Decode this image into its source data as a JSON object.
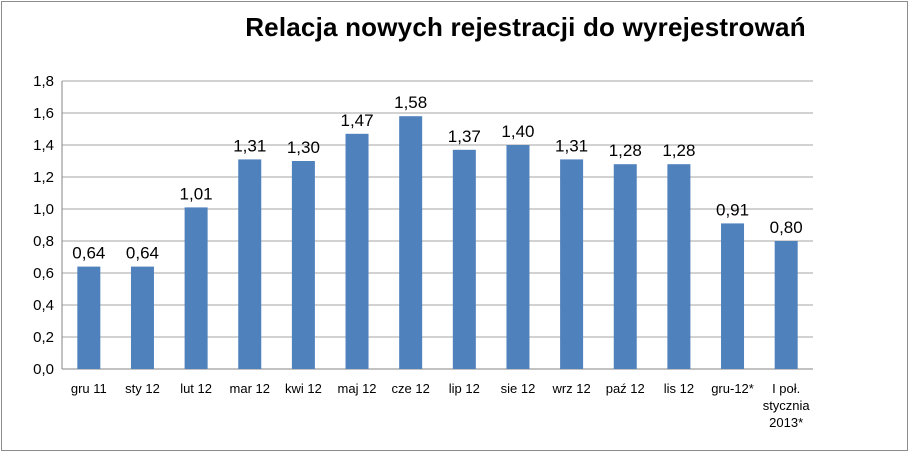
{
  "chart_data": {
    "type": "bar",
    "title": "Relacja nowych rejestracji do wyrejestrowań",
    "xlabel": "",
    "ylabel": "",
    "ylim": [
      0,
      1.8
    ],
    "yticks": [
      "0,0",
      "0,2",
      "0,4",
      "0,6",
      "0,8",
      "1,0",
      "1,2",
      "1,4",
      "1,6",
      "1,8"
    ],
    "grid": true,
    "legend": "none",
    "bar_color": "#4f81bd",
    "categories": [
      [
        "gru 11"
      ],
      [
        "sty 12"
      ],
      [
        "lut 12"
      ],
      [
        "mar 12"
      ],
      [
        "kwi 12"
      ],
      [
        "maj 12"
      ],
      [
        "cze 12"
      ],
      [
        "lip 12"
      ],
      [
        "sie 12"
      ],
      [
        "wrz 12"
      ],
      [
        "paź 12"
      ],
      [
        "lis 12"
      ],
      [
        "gru-12*"
      ],
      [
        "I poł.",
        "stycznia",
        "2013*"
      ]
    ],
    "values": [
      0.64,
      0.64,
      1.01,
      1.31,
      1.3,
      1.47,
      1.58,
      1.37,
      1.4,
      1.31,
      1.28,
      1.28,
      0.91,
      0.8
    ],
    "value_labels": [
      "0,64",
      "0,64",
      "1,01",
      "1,31",
      "1,30",
      "1,47",
      "1,58",
      "1,37",
      "1,40",
      "1,31",
      "1,28",
      "1,28",
      "0,91",
      "0,80"
    ]
  }
}
